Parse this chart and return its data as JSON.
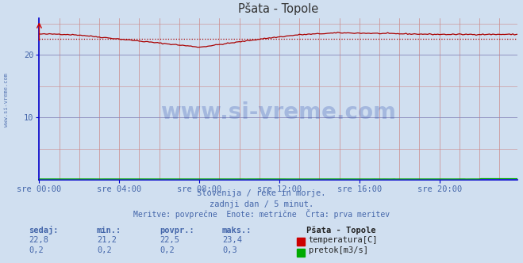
{
  "title": "Pšata - Topole",
  "background_color": "#d0dff0",
  "plot_bg_color": "#d0dff0",
  "fig_width": 6.59,
  "fig_height": 3.32,
  "dpi": 100,
  "xlim": [
    0,
    287
  ],
  "ylim": [
    0,
    25.8
  ],
  "yticks": [
    10,
    20
  ],
  "xtick_labels": [
    "sre 00:00",
    "sre 04:00",
    "sre 08:00",
    "sre 12:00",
    "sre 16:00",
    "sre 20:00"
  ],
  "xtick_positions": [
    0,
    48,
    96,
    144,
    192,
    240
  ],
  "grid_color_h": "#8888bb",
  "grid_color_v": "#cc8888",
  "temp_color": "#aa0000",
  "flow_color": "#00aa00",
  "avg_line_color": "#aa0000",
  "avg_temp": 22.5,
  "subtitle1": "Slovenija / reke in morje.",
  "subtitle2": "zadnji dan / 5 minut.",
  "subtitle3": "Meritve: povprečne  Enote: metrične  Črta: prva meritev",
  "text_color": "#4466aa",
  "table_headers": [
    "sedaj:",
    "min.:",
    "povpr.:",
    "maks.:"
  ],
  "table_temp": [
    "22,8",
    "21,2",
    "22,5",
    "23,4"
  ],
  "table_flow": [
    "0,2",
    "0,2",
    "0,2",
    "0,3"
  ],
  "legend_station": "Pšata - Topole",
  "legend_temp": "temperatura[C]",
  "legend_flow": "pretok[m3/s]",
  "watermark": "www.si-vreme.com",
  "watermark_color": "#2244aa",
  "watermark_alpha": 0.25,
  "left_label": "www.si-vreme.com",
  "axis_color": "#0000cc",
  "tick_color": "#4466aa",
  "title_color": "#333333",
  "temp_red_color": "#cc0000",
  "flow_green_color": "#00aa00"
}
